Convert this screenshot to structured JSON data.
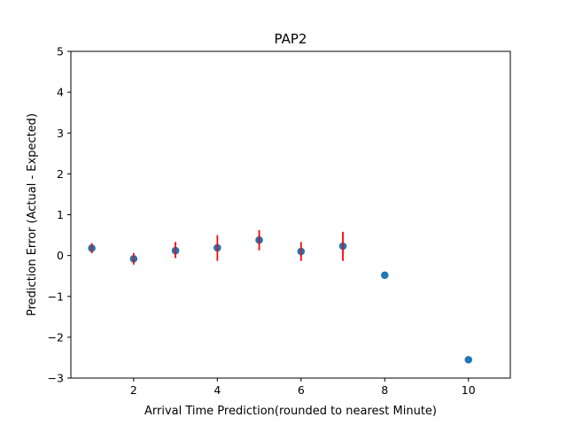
{
  "chart_data": {
    "type": "scatter",
    "title": "PAP2",
    "xlabel": "Arrival Time Prediction(rounded to nearest Minute)",
    "ylabel": "Prediction Error (Actual - Expected)",
    "xlim": [
      0.5,
      11
    ],
    "ylim": [
      -3,
      5
    ],
    "xticks": [
      2,
      4,
      6,
      8,
      10
    ],
    "yticks": [
      -3,
      -2,
      -1,
      0,
      1,
      2,
      3,
      4,
      5
    ],
    "grid": false,
    "legend": "none",
    "marker_color": "#1f77b4",
    "errorbar_color": "#ff0000",
    "points": [
      {
        "x": 1,
        "y": 0.18,
        "err_low": 0.06,
        "err_high": 0.3
      },
      {
        "x": 2,
        "y": -0.08,
        "err_low": -0.22,
        "err_high": 0.06
      },
      {
        "x": 3,
        "y": 0.12,
        "err_low": -0.06,
        "err_high": 0.33
      },
      {
        "x": 4,
        "y": 0.19,
        "err_low": -0.13,
        "err_high": 0.5
      },
      {
        "x": 5,
        "y": 0.38,
        "err_low": 0.13,
        "err_high": 0.62
      },
      {
        "x": 6,
        "y": 0.1,
        "err_low": -0.13,
        "err_high": 0.33
      },
      {
        "x": 7,
        "y": 0.23,
        "err_low": -0.13,
        "err_high": 0.58
      },
      {
        "x": 8,
        "y": -0.48,
        "err_low": -0.48,
        "err_high": -0.48
      },
      {
        "x": 10,
        "y": -2.55,
        "err_low": -2.55,
        "err_high": -2.55
      }
    ]
  }
}
